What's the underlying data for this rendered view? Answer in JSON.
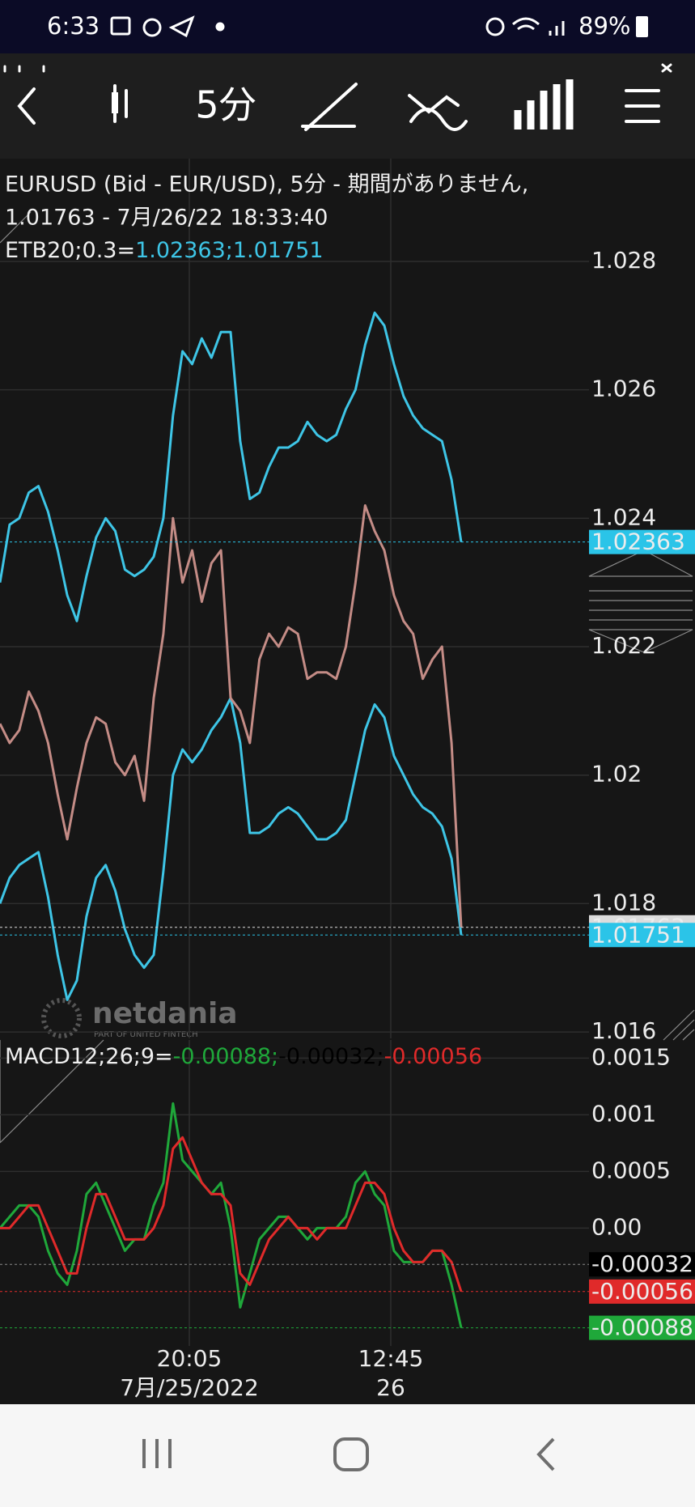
{
  "status_bar": {
    "time": "6:33",
    "battery": "89%"
  },
  "toolbar": {
    "interval": "5分"
  },
  "chart_data": [
    {
      "type": "line",
      "title": "EURUSD (Bid - EUR/USD), 5分 - 期間がありません,",
      "subtitle": "1.01763 - 7月/26/22 18:33:40",
      "indicator_name": "ETB20;0.3=",
      "indicator_values": [
        {
          "text": "1.02363;1.01751",
          "color": "#3ec5e6"
        }
      ],
      "ylim": [
        1.0159,
        1.0296
      ],
      "yticks": [
        1.028,
        1.026,
        1.024,
        1.022,
        1.02,
        1.018,
        1.016
      ],
      "grid": true,
      "series": [
        {
          "color": "#3ec5e6",
          "values": [
            1.023,
            1.0239,
            1.024,
            1.0244,
            1.0245,
            1.0241,
            1.0235,
            1.0228,
            1.0224,
            1.0231,
            1.0237,
            1.024,
            1.0238,
            1.0232,
            1.0231,
            1.0232,
            1.0234,
            1.024,
            1.0256,
            1.0266,
            1.0264,
            1.0268,
            1.0265,
            1.0269,
            1.0269,
            1.0252,
            1.0243,
            1.0244,
            1.0248,
            1.0251,
            1.0251,
            1.0252,
            1.0255,
            1.0253,
            1.0252,
            1.0253,
            1.0257,
            1.026,
            1.0267,
            1.0272,
            1.027,
            1.0264,
            1.0259,
            1.0256,
            1.0254,
            1.0253,
            1.0252,
            1.0246,
            1.02363
          ]
        },
        {
          "color": "#3ec5e6",
          "values": [
            1.018,
            1.0184,
            1.0186,
            1.0187,
            1.0188,
            1.0181,
            1.0172,
            1.0165,
            1.0168,
            1.0178,
            1.0184,
            1.0186,
            1.0182,
            1.0176,
            1.0172,
            1.017,
            1.0172,
            1.0185,
            1.02,
            1.0204,
            1.0202,
            1.0204,
            1.0207,
            1.0209,
            1.0212,
            1.0205,
            1.0191,
            1.0191,
            1.0192,
            1.0194,
            1.0195,
            1.0194,
            1.0192,
            1.019,
            1.019,
            1.0191,
            1.0193,
            1.02,
            1.0207,
            1.0211,
            1.0209,
            1.0203,
            1.02,
            1.0197,
            1.0195,
            1.0194,
            1.0192,
            1.0187,
            1.01751
          ]
        },
        {
          "color": "#c48c86",
          "values": [
            1.0208,
            1.0205,
            1.0207,
            1.0213,
            1.021,
            1.0205,
            1.0197,
            1.019,
            1.0198,
            1.0205,
            1.0209,
            1.0208,
            1.0202,
            1.02,
            1.0203,
            1.0196,
            1.0212,
            1.0222,
            1.024,
            1.023,
            1.0235,
            1.0227,
            1.0233,
            1.0235,
            1.0212,
            1.021,
            1.0205,
            1.0218,
            1.0222,
            1.022,
            1.0223,
            1.0222,
            1.0215,
            1.0216,
            1.0216,
            1.0215,
            1.022,
            1.023,
            1.0242,
            1.0238,
            1.0235,
            1.0228,
            1.0224,
            1.0222,
            1.0215,
            1.0218,
            1.022,
            1.0205,
            1.01763
          ]
        }
      ],
      "last_values": [
        {
          "value": 1.02363,
          "color": "#2bc4e8"
        },
        {
          "value": 1.01763,
          "color": "#dcdcdc"
        },
        {
          "value": 1.01751,
          "color": "#2bc4e8"
        }
      ]
    },
    {
      "type": "line",
      "indicator_name": "MACD12;26;9=",
      "indicator_values": [
        {
          "text": "-0.00088;",
          "color": "#1fa83a"
        },
        {
          "text": "-0.00032;",
          "color": "#000000"
        },
        {
          "text": "-0.00056",
          "color": "#e02a2a"
        }
      ],
      "ylim": [
        -0.00104,
        0.00166
      ],
      "yticks": [
        0.0015,
        0.001,
        0.0005,
        {
          "value": 0,
          "label": "0.00"
        }
      ],
      "grid": true,
      "series": [
        {
          "color": "#1fa83a",
          "values": [
            0.0,
            0.0001,
            0.0002,
            0.0002,
            0.0001,
            -0.0002,
            -0.0004,
            -0.0005,
            -0.0002,
            0.0003,
            0.0004,
            0.0002,
            0.0,
            -0.0002,
            -0.0001,
            -0.0001,
            0.0002,
            0.0004,
            0.0011,
            0.0006,
            0.0005,
            0.0004,
            0.0003,
            0.0004,
            0.0,
            -0.0007,
            -0.0004,
            -0.0001,
            0.0,
            0.0001,
            0.0001,
            0.0,
            -0.0001,
            0.0,
            0.0,
            0.0,
            0.0001,
            0.0004,
            0.0005,
            0.0003,
            0.0002,
            -0.0002,
            -0.0003,
            -0.0003,
            -0.0003,
            -0.0002,
            -0.0002,
            -0.0005,
            -0.00088
          ]
        },
        {
          "color": "#e02a2a",
          "values": [
            0.0,
            0.0,
            0.0001,
            0.0002,
            0.0002,
            0.0,
            -0.0002,
            -0.0004,
            -0.0004,
            0.0,
            0.0003,
            0.0003,
            0.0001,
            -0.0001,
            -0.0001,
            -0.0001,
            0.0,
            0.0002,
            0.0007,
            0.0008,
            0.0006,
            0.0004,
            0.0003,
            0.0003,
            0.0002,
            -0.0004,
            -0.0005,
            -0.0003,
            -0.0001,
            0.0,
            0.0001,
            0.0,
            0.0,
            -0.0001,
            0.0,
            0.0,
            0.0,
            0.0002,
            0.0004,
            0.0004,
            0.0003,
            0.0,
            -0.0002,
            -0.0003,
            -0.0003,
            -0.0002,
            -0.0002,
            -0.0003,
            -0.00056
          ]
        }
      ],
      "last_values": [
        {
          "value": -0.00032,
          "color": "#000000"
        },
        {
          "value": -0.00056,
          "color": "#e02a2a"
        },
        {
          "value": -0.00088,
          "color": "#1fa83a"
        }
      ]
    }
  ],
  "x_axis": [
    {
      "time": "20:05",
      "date": "7月/25/2022"
    },
    {
      "time": "12:45",
      "date": "26"
    }
  ],
  "watermark": {
    "brand": "netdania",
    "tagline": "PART OF UNITED FINTECH"
  }
}
